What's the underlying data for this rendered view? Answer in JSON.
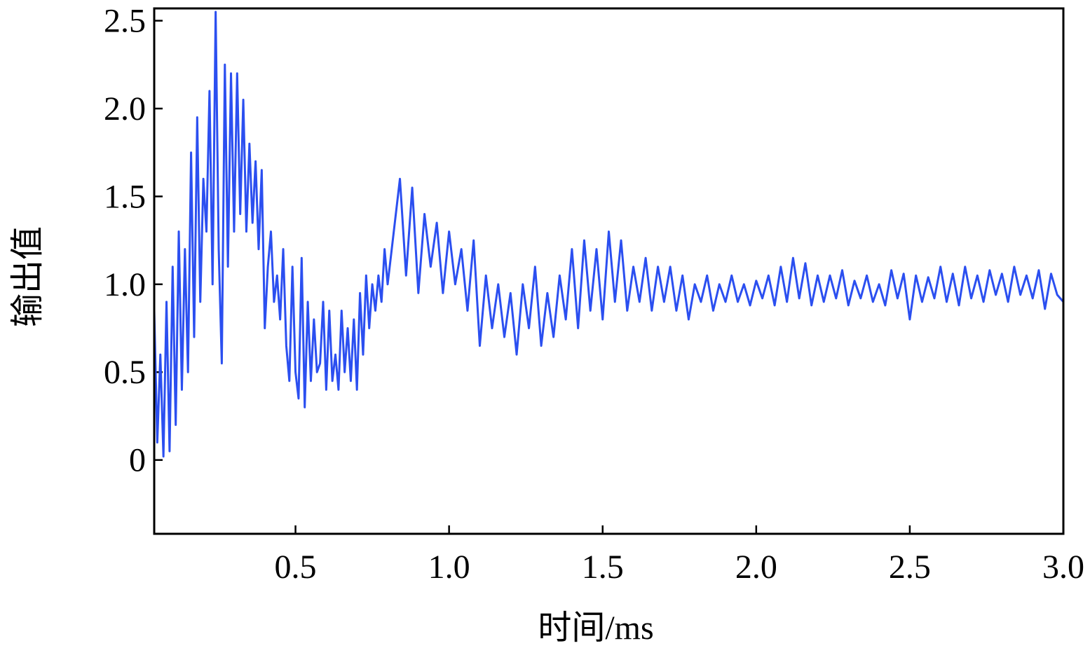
{
  "chart_data": {
    "type": "line",
    "xlabel": "时间/ms",
    "ylabel": "输出值",
    "xlim": [
      0.04,
      3.0
    ],
    "ylim": [
      -0.42,
      2.57
    ],
    "xticks": [
      0.5,
      {
        "value": 1.0,
        "label": "1.0"
      },
      1.5,
      {
        "value": 2.0,
        "label": "2.0"
      },
      2.5,
      {
        "value": 3.0,
        "label": "3.0"
      }
    ],
    "yticks": [
      0,
      0.5,
      {
        "value": 1.0,
        "label": "1.0"
      },
      1.5,
      {
        "value": 2.0,
        "label": "2.0"
      },
      2.5
    ],
    "grid": false,
    "x": [
      0.04,
      0.05,
      0.06,
      0.07,
      0.08,
      0.09,
      0.1,
      0.11,
      0.12,
      0.13,
      0.14,
      0.15,
      0.16,
      0.17,
      0.18,
      0.19,
      0.2,
      0.21,
      0.22,
      0.23,
      0.24,
      0.25,
      0.26,
      0.27,
      0.28,
      0.29,
      0.3,
      0.31,
      0.32,
      0.33,
      0.34,
      0.35,
      0.36,
      0.37,
      0.38,
      0.39,
      0.4,
      0.41,
      0.42,
      0.43,
      0.44,
      0.45,
      0.46,
      0.47,
      0.48,
      0.49,
      0.5,
      0.51,
      0.52,
      0.53,
      0.54,
      0.55,
      0.56,
      0.57,
      0.58,
      0.59,
      0.6,
      0.61,
      0.62,
      0.63,
      0.64,
      0.65,
      0.66,
      0.67,
      0.68,
      0.69,
      0.7,
      0.71,
      0.72,
      0.73,
      0.74,
      0.75,
      0.76,
      0.77,
      0.78,
      0.79,
      0.8,
      0.82,
      0.84,
      0.86,
      0.88,
      0.9,
      0.92,
      0.94,
      0.96,
      0.98,
      1.0,
      1.02,
      1.04,
      1.06,
      1.08,
      1.1,
      1.12,
      1.14,
      1.16,
      1.18,
      1.2,
      1.22,
      1.24,
      1.26,
      1.28,
      1.3,
      1.32,
      1.34,
      1.36,
      1.38,
      1.4,
      1.42,
      1.44,
      1.46,
      1.48,
      1.5,
      1.52,
      1.54,
      1.56,
      1.58,
      1.6,
      1.62,
      1.64,
      1.66,
      1.68,
      1.7,
      1.72,
      1.74,
      1.76,
      1.78,
      1.8,
      1.82,
      1.84,
      1.86,
      1.88,
      1.9,
      1.92,
      1.94,
      1.96,
      1.98,
      2.0,
      2.02,
      2.04,
      2.06,
      2.08,
      2.1,
      2.12,
      2.14,
      2.16,
      2.18,
      2.2,
      2.22,
      2.24,
      2.26,
      2.28,
      2.3,
      2.32,
      2.34,
      2.36,
      2.38,
      2.4,
      2.42,
      2.44,
      2.46,
      2.48,
      2.5,
      2.52,
      2.54,
      2.56,
      2.58,
      2.6,
      2.62,
      2.64,
      2.66,
      2.68,
      2.7,
      2.72,
      2.74,
      2.76,
      2.78,
      2.8,
      2.82,
      2.84,
      2.86,
      2.88,
      2.9,
      2.92,
      2.94,
      2.96,
      2.98,
      3.0
    ],
    "series": [
      {
        "color": "#2b4ff0",
        "values": [
          0.85,
          0.1,
          0.6,
          0.02,
          0.9,
          0.05,
          1.1,
          0.2,
          1.3,
          0.4,
          1.2,
          0.5,
          1.75,
          0.7,
          1.95,
          0.9,
          1.6,
          1.3,
          2.1,
          1.0,
          2.55,
          1.2,
          0.55,
          2.25,
          1.1,
          2.2,
          1.3,
          2.2,
          1.4,
          2.05,
          1.3,
          1.8,
          1.35,
          1.7,
          1.2,
          1.65,
          0.75,
          1.1,
          1.3,
          0.9,
          1.05,
          0.8,
          1.2,
          0.65,
          0.45,
          1.1,
          0.5,
          0.35,
          1.15,
          0.3,
          0.9,
          0.45,
          0.8,
          0.5,
          0.55,
          0.9,
          0.4,
          0.85,
          0.45,
          0.6,
          0.4,
          0.85,
          0.5,
          0.75,
          0.45,
          0.8,
          0.4,
          0.95,
          0.6,
          1.05,
          0.75,
          1.0,
          0.85,
          1.05,
          0.9,
          1.2,
          1.0,
          1.3,
          1.6,
          1.05,
          1.55,
          0.95,
          1.4,
          1.1,
          1.35,
          0.95,
          1.3,
          1.0,
          1.2,
          0.85,
          1.25,
          0.65,
          1.05,
          0.75,
          1.0,
          0.7,
          0.95,
          0.6,
          1.0,
          0.75,
          1.1,
          0.65,
          0.95,
          0.7,
          1.05,
          0.8,
          1.2,
          0.75,
          1.25,
          0.85,
          1.2,
          0.8,
          1.3,
          0.9,
          1.25,
          0.85,
          1.1,
          0.9,
          1.15,
          0.85,
          1.1,
          0.9,
          1.1,
          0.85,
          1.05,
          0.8,
          1.0,
          0.9,
          1.05,
          0.85,
          1.0,
          0.9,
          1.05,
          0.9,
          1.0,
          0.88,
          1.02,
          0.92,
          1.05,
          0.88,
          1.1,
          0.9,
          1.15,
          0.92,
          1.12,
          0.88,
          1.05,
          0.9,
          1.05,
          0.92,
          1.08,
          0.88,
          1.02,
          0.92,
          1.05,
          0.9,
          1.0,
          0.88,
          1.08,
          0.92,
          1.06,
          0.8,
          1.05,
          0.9,
          1.04,
          0.92,
          1.1,
          0.9,
          1.06,
          0.88,
          1.1,
          0.92,
          1.05,
          0.9,
          1.08,
          0.94,
          1.06,
          0.9,
          1.1,
          0.94,
          1.05,
          0.92,
          1.08,
          0.86,
          1.06,
          0.94,
          0.9
        ]
      }
    ]
  }
}
